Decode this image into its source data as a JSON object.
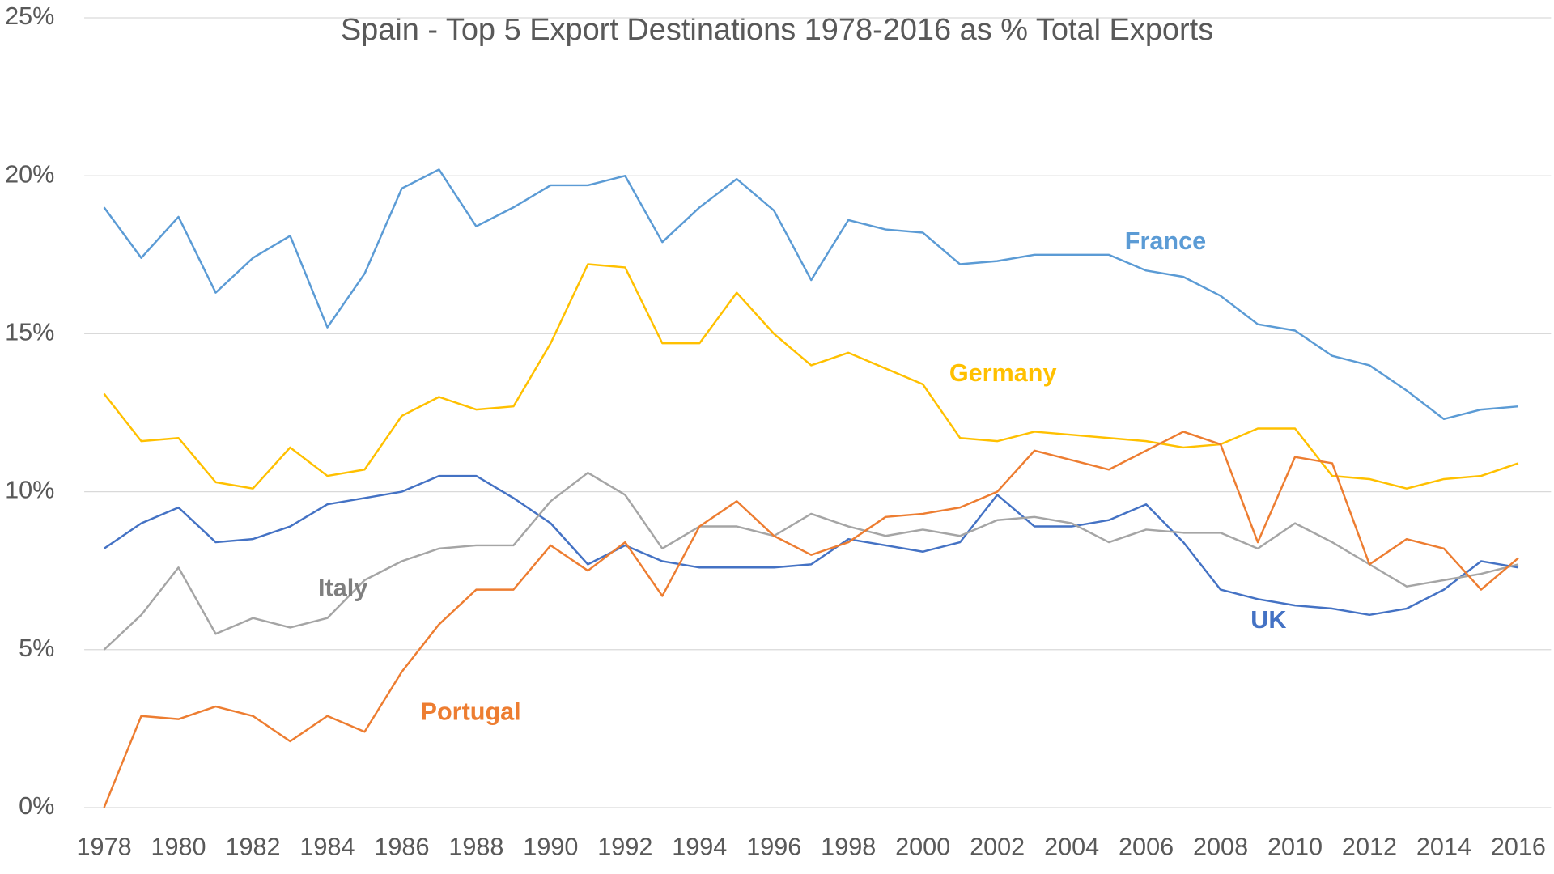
{
  "chart_data": {
    "type": "line",
    "title": "Spain - Top 5 Export Destinations 1978-2016 as % Total Exports",
    "x": [
      1978,
      1979,
      1980,
      1981,
      1982,
      1983,
      1984,
      1985,
      1986,
      1987,
      1988,
      1989,
      1990,
      1991,
      1992,
      1993,
      1994,
      1995,
      1996,
      1997,
      1998,
      1999,
      2000,
      2001,
      2002,
      2003,
      2004,
      2005,
      2006,
      2007,
      2008,
      2009,
      2010,
      2011,
      2012,
      2013,
      2014,
      2015,
      2016
    ],
    "xlim": [
      1978,
      2016
    ],
    "xticks": [
      1978,
      1980,
      1982,
      1984,
      1986,
      1988,
      1990,
      1992,
      1994,
      1996,
      1998,
      2000,
      2002,
      2004,
      2006,
      2008,
      2010,
      2012,
      2014,
      2016
    ],
    "ylim": [
      0,
      25
    ],
    "yticks": [
      {
        "value": 0,
        "label": "0%"
      },
      {
        "value": 5,
        "label": "5%"
      },
      {
        "value": 10,
        "label": "10%"
      },
      {
        "value": 15,
        "label": "15%"
      },
      {
        "value": 20,
        "label": "20%"
      },
      {
        "value": 25,
        "label": "25%"
      }
    ],
    "grid": true,
    "series": [
      {
        "name": "France",
        "color": "#5b9bd5",
        "values": [
          19.0,
          17.4,
          18.7,
          16.3,
          17.4,
          18.1,
          15.2,
          16.9,
          19.6,
          20.2,
          18.4,
          19.0,
          19.7,
          19.7,
          20.0,
          17.9,
          19.0,
          19.9,
          18.9,
          16.7,
          18.6,
          18.3,
          18.2,
          17.2,
          17.3,
          17.5,
          17.5,
          17.5,
          17.0,
          16.8,
          16.2,
          15.3,
          15.1,
          14.3,
          14.0,
          13.2,
          12.3,
          12.6,
          12.7
        ]
      },
      {
        "name": "Germany",
        "color": "#ffc000",
        "values": [
          13.1,
          11.6,
          11.7,
          10.3,
          10.1,
          11.4,
          10.5,
          10.7,
          12.4,
          13.0,
          12.6,
          12.7,
          14.7,
          17.2,
          17.1,
          14.7,
          14.7,
          16.3,
          15.0,
          14.0,
          14.4,
          13.9,
          13.4,
          11.7,
          11.6,
          11.9,
          11.8,
          11.7,
          11.6,
          11.4,
          11.5,
          12.0,
          12.0,
          10.5,
          10.4,
          10.1,
          10.4,
          10.5,
          10.9
        ]
      },
      {
        "name": "UK",
        "color": "#4472c4",
        "values": [
          8.2,
          9.0,
          9.5,
          8.4,
          8.5,
          8.9,
          9.6,
          9.8,
          10.0,
          10.5,
          10.5,
          9.8,
          9.0,
          7.7,
          8.3,
          7.8,
          7.6,
          7.6,
          7.6,
          7.7,
          8.5,
          8.3,
          8.1,
          8.4,
          9.9,
          8.9,
          8.9,
          9.1,
          9.6,
          8.4,
          6.9,
          6.6,
          6.4,
          6.3,
          6.1,
          6.3,
          6.9,
          7.8,
          7.6
        ]
      },
      {
        "name": "Italy",
        "color": "#a5a5a5",
        "values": [
          5.0,
          6.1,
          7.6,
          5.5,
          6.0,
          5.7,
          6.0,
          7.2,
          7.8,
          8.2,
          8.3,
          8.3,
          9.7,
          10.6,
          9.9,
          8.2,
          8.9,
          8.9,
          8.6,
          9.3,
          8.9,
          8.6,
          8.8,
          8.6,
          9.1,
          9.2,
          9.0,
          8.4,
          8.8,
          8.7,
          8.7,
          8.2,
          9.0,
          8.4,
          7.7,
          7.0,
          7.2,
          7.4,
          7.7
        ]
      },
      {
        "name": "Portugal",
        "color": "#ed7d31",
        "values": [
          0.0,
          2.9,
          2.8,
          3.2,
          2.9,
          2.1,
          2.9,
          2.4,
          4.3,
          5.8,
          6.9,
          6.9,
          8.3,
          7.5,
          8.4,
          6.7,
          8.9,
          9.7,
          8.6,
          8.0,
          8.4,
          9.2,
          9.3,
          9.5,
          10.0,
          11.3,
          11.0,
          10.7,
          11.3,
          11.9,
          11.5,
          8.4,
          11.1,
          10.9,
          7.7,
          8.5,
          8.2,
          6.9,
          7.9
        ]
      }
    ]
  }
}
